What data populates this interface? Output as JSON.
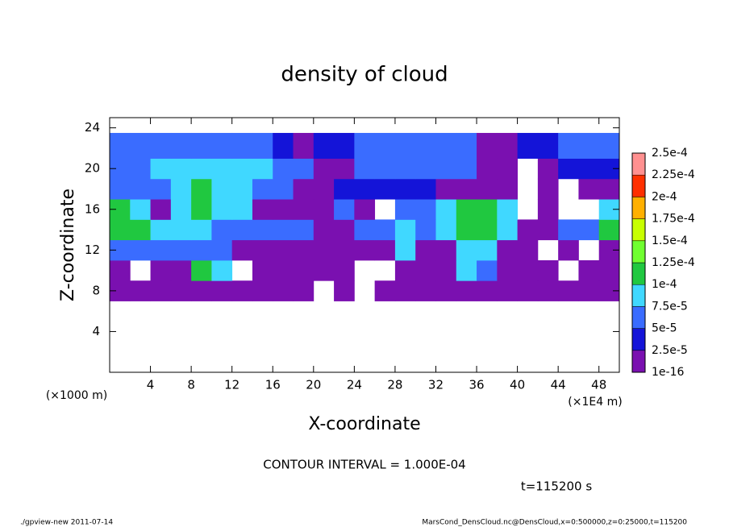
{
  "chart_data": {
    "type": "heatmap",
    "title": "density of cloud",
    "xlabel": "X-coordinate",
    "ylabel": "Z-coordinate",
    "x_unit": "(×1E4 m)",
    "y_unit": "(×1000 m)",
    "xlim": [
      0,
      50
    ],
    "ylim": [
      0,
      25
    ],
    "xticks": [
      4,
      8,
      12,
      16,
      20,
      24,
      28,
      32,
      36,
      40,
      44,
      48
    ],
    "yticks": [
      4,
      8,
      12,
      16,
      20,
      24
    ],
    "colorbar": {
      "levels": [
        1e-16,
        {
          "value": 2.5e-05,
          "label": "2.5e-5"
        },
        {
          "value": 5e-05,
          "label": "5e-5"
        },
        {
          "value": 7.5e-05,
          "label": "7.5e-5"
        },
        {
          "value": 0.0001,
          "label": "1e-4"
        },
        {
          "value": 0.000125,
          "label": "1.25e-4"
        },
        {
          "value": 0.00015,
          "label": "1.5e-4"
        },
        {
          "value": 0.000175,
          "label": "1.75e-4"
        },
        {
          "value": 0.0002,
          "label": "2e-4"
        },
        {
          "value": 0.000225,
          "label": "2.25e-4"
        },
        {
          "value": 0.00025,
          "label": "2.5e-4"
        }
      ],
      "colors": [
        "#7a10b0",
        "#1414d8",
        "#3a6cff",
        "#40d8ff",
        "#20c840",
        "#70ff30",
        "#c8ff00",
        "#ffb000",
        "#ff3000",
        "#ff9090"
      ]
    },
    "field": {
      "x": [
        0,
        2,
        4,
        6,
        8,
        10,
        12,
        14,
        16,
        18,
        20,
        22,
        24,
        26,
        28,
        30,
        32,
        34,
        36,
        38,
        40,
        42,
        44,
        46,
        48,
        50
      ],
      "z": [
        7,
        9,
        11,
        13,
        15,
        17,
        19,
        21,
        23.5
      ],
      "values": [
        [
          1e-05,
          1e-05,
          1e-05,
          1e-05,
          1e-05,
          1e-05,
          1e-05,
          1e-05,
          1e-05,
          1e-05,
          null,
          1e-05,
          null,
          1e-05,
          1e-05,
          1e-05,
          1e-05,
          1e-05,
          1e-05,
          1e-05,
          1e-05,
          1e-05,
          1e-05,
          1e-05,
          1e-05
        ],
        [
          1e-05,
          null,
          1e-05,
          1e-05,
          0.00011,
          8e-05,
          null,
          1e-05,
          1e-05,
          1e-05,
          1e-05,
          1e-05,
          null,
          null,
          1e-05,
          1e-05,
          1e-05,
          8e-05,
          6e-05,
          1e-05,
          1e-05,
          1e-05,
          null,
          1e-05,
          1e-05
        ],
        [
          6e-05,
          6e-05,
          6e-05,
          6e-05,
          6e-05,
          6e-05,
          1e-05,
          1e-05,
          1e-05,
          1e-05,
          1e-05,
          1e-05,
          1e-05,
          1e-05,
          8e-05,
          1e-05,
          1e-05,
          8e-05,
          8e-05,
          1e-05,
          1e-05,
          null,
          1e-05,
          null,
          1e-05
        ],
        [
          0.00011,
          0.00011,
          8e-05,
          8e-05,
          8e-05,
          6e-05,
          6e-05,
          6e-05,
          6e-05,
          6e-05,
          1e-05,
          1e-05,
          6e-05,
          6e-05,
          8e-05,
          6e-05,
          8e-05,
          0.00011,
          0.00011,
          8e-05,
          1e-05,
          1e-05,
          6e-05,
          6e-05,
          0.00011
        ],
        [
          0.00011,
          8e-05,
          1e-05,
          8e-05,
          0.00011,
          8e-05,
          8e-05,
          1e-05,
          1e-05,
          1e-05,
          1e-05,
          6e-05,
          1e-05,
          null,
          6e-05,
          6e-05,
          8e-05,
          0.00011,
          0.00011,
          8e-05,
          null,
          1e-05,
          null,
          null,
          8e-05
        ],
        [
          6e-05,
          6e-05,
          6e-05,
          8e-05,
          0.00011,
          8e-05,
          8e-05,
          6e-05,
          6e-05,
          1e-05,
          1e-05,
          3e-05,
          3e-05,
          3e-05,
          3e-05,
          3e-05,
          1e-05,
          1e-05,
          1e-05,
          1e-05,
          null,
          1e-05,
          null,
          1e-05,
          1e-05
        ],
        [
          6e-05,
          6e-05,
          8e-05,
          8e-05,
          8e-05,
          8e-05,
          8e-05,
          8e-05,
          6e-05,
          6e-05,
          1e-05,
          1e-05,
          6e-05,
          6e-05,
          6e-05,
          6e-05,
          6e-05,
          6e-05,
          1e-05,
          1e-05,
          null,
          1e-05,
          3e-05,
          3e-05,
          3e-05
        ],
        [
          6e-05,
          6e-05,
          6e-05,
          6e-05,
          6e-05,
          6e-05,
          6e-05,
          6e-05,
          3e-05,
          1e-05,
          3e-05,
          3e-05,
          6e-05,
          6e-05,
          6e-05,
          6e-05,
          6e-05,
          6e-05,
          1e-05,
          1e-05,
          3e-05,
          3e-05,
          6e-05,
          6e-05,
          6e-05
        ]
      ]
    },
    "annotations": [
      "CONTOUR INTERVAL = 1.000E-04",
      "t=115200 s",
      "./gpview-new  2011-07-14",
      "MarsCond_DensCloud.nc@DensCloud,x=0:500000,z=0:25000,t=115200"
    ]
  }
}
